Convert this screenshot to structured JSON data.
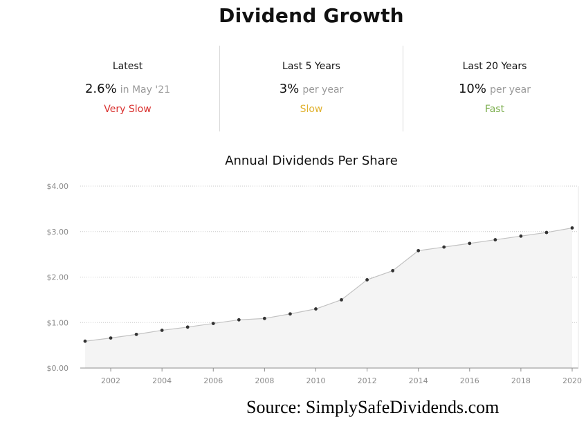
{
  "header": {
    "title": "Dividend Growth"
  },
  "stats": [
    {
      "label": "Latest",
      "value": "2.6%",
      "suffix": "in May '21",
      "rating": "Very Slow",
      "rating_color": "#d9302e"
    },
    {
      "label": "Last 5 Years",
      "value": "3%",
      "suffix": "per year",
      "rating": "Slow",
      "rating_color": "#e0b12f"
    },
    {
      "label": "Last 20 Years",
      "value": "10%",
      "suffix": "per year",
      "rating": "Fast",
      "rating_color": "#7aad4c"
    }
  ],
  "chart_data": {
    "type": "area",
    "title": "Annual Dividends Per Share",
    "x": [
      2001,
      2002,
      2003,
      2004,
      2005,
      2006,
      2007,
      2008,
      2009,
      2010,
      2011,
      2012,
      2013,
      2014,
      2015,
      2016,
      2017,
      2018,
      2019,
      2020
    ],
    "values": [
      0.59,
      0.66,
      0.74,
      0.83,
      0.9,
      0.98,
      1.06,
      1.09,
      1.19,
      1.3,
      1.5,
      1.94,
      2.14,
      2.58,
      2.66,
      2.74,
      2.82,
      2.9,
      2.98,
      3.08
    ],
    "xlabel": "",
    "ylabel": "",
    "ylim": [
      0,
      4
    ],
    "xlim": [
      2001,
      2020
    ],
    "y_ticks": [
      0,
      1,
      2,
      3,
      4
    ],
    "y_tick_labels": [
      "$0.00",
      "$1.00",
      "$2.00",
      "$3.00",
      "$4.00"
    ],
    "x_ticks": [
      2002,
      2004,
      2006,
      2008,
      2010,
      2012,
      2014,
      2016,
      2018,
      2020
    ],
    "grid": true,
    "line_color": "#c2c2c2",
    "fill_color": "#f4f4f4",
    "marker_color": "#333333"
  },
  "footer": {
    "source": "Source: SimplySafeDividends.com"
  }
}
